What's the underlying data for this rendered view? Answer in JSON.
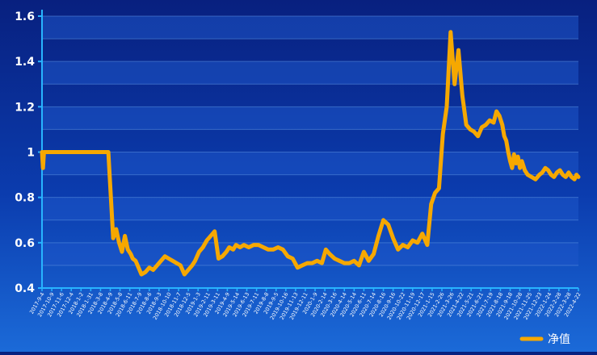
{
  "chart_data": {
    "type": "line",
    "title": "",
    "xlabel": "",
    "ylabel": "",
    "ylim": [
      0.4,
      1.6
    ],
    "yticks": [
      "0.4",
      "0.6",
      "0.8",
      "1",
      "1.2",
      "1.4",
      "1.6"
    ],
    "grid": true,
    "legend_position": "bottom-right",
    "colors": {
      "line": "#f6a800",
      "axis": "#28b4ff",
      "tick_text": "#ffffff",
      "grid": "#5a8fe0",
      "band": "#1d55c8"
    },
    "x_tick_labels": [
      "2017-9-4",
      "2017-10-9",
      "2017-11-6",
      "2017-12-4",
      "2018-1-2",
      "2018-1-31",
      "2018-3-8",
      "2018-4-9",
      "2018-5-8",
      "2018-6-11",
      "2018-7-9",
      "2018-8-6",
      "2018-9-3",
      "2018-10-10",
      "2018-11-7",
      "2018-12-5",
      "2019-1-3",
      "2019-2-11",
      "2019-3-11",
      "2019-4-9",
      "2019-5-14",
      "2019-6-13",
      "2019-7-11",
      "2019-8-8",
      "2019-9-5",
      "2019-10-16",
      "2019-11-13",
      "2019-12-11",
      "2020-1-9",
      "2020-2-14",
      "2020-3-16",
      "2020-4-14",
      "2020-5-14",
      "2020-6-11",
      "2020-7-14",
      "2020-8-16",
      "2020-9-16",
      "2020-10-22",
      "2020-11-19",
      "2020-12-17",
      "2021-1-15",
      "2021-2-26",
      "2021-3-26",
      "2021-4-22",
      "2021-5-21",
      "2021-6-21",
      "2021-7-19",
      "2021-8-18",
      "2021-9-18",
      "2021-10-28",
      "2021-11-25",
      "2021-12-23",
      "2022-1-24",
      "2022-2-28",
      "2022-3-28",
      "2022-4-22"
    ],
    "series": [
      {
        "name": "净值",
        "x": [
          0,
          0.1,
          0.2,
          0.3,
          0.5,
          2,
          3,
          4,
          5,
          6,
          6.8,
          7.3,
          7.6,
          7.9,
          8.2,
          8.5,
          8.8,
          9.1,
          9.3,
          9.6,
          9.9,
          10.2,
          10.6,
          11,
          11.4,
          11.8,
          12.2,
          12.6,
          13,
          13.4,
          13.8,
          14.2,
          14.6,
          15,
          15.4,
          15.7,
          16.1,
          16.5,
          16.9,
          17.3,
          17.7,
          18.1,
          18.5,
          18.9,
          19.2,
          19.6,
          19.9,
          20.3,
          20.7,
          21.2,
          21.7,
          22.2,
          22.7,
          23.2,
          23.7,
          24.2,
          24.7,
          25.2,
          25.7,
          26.2,
          26.7,
          27.2,
          27.7,
          28.2,
          28.7,
          29.1,
          29.5,
          30,
          30.5,
          31,
          31.5,
          32,
          32.5,
          33,
          33.5,
          34,
          34.5,
          35,
          35.5,
          36,
          36.5,
          37,
          37.5,
          38,
          38.5,
          39,
          39.5,
          39.9,
          40.3,
          40.7,
          41.1,
          41.5,
          41.9,
          42.3,
          42.7,
          43.1,
          43.5,
          43.9,
          44.3,
          44.7,
          45.1,
          45.5,
          45.9,
          46.3,
          46.6,
          46.9,
          47.2,
          47.4,
          47.6,
          47.8,
          48,
          48.2,
          48.4,
          48.6,
          48.8,
          49,
          49.2,
          49.5,
          49.8,
          50.2,
          50.6,
          51,
          51.3,
          51.6,
          51.9,
          52.2,
          52.5,
          52.8,
          53.1,
          53.4,
          53.7,
          54,
          54.3,
          54.6,
          54.8,
          55
        ],
        "y": [
          1.0,
          0.93,
          1.0,
          1.0,
          1.0,
          1.0,
          1.0,
          1.0,
          1.0,
          1.0,
          1.0,
          0.62,
          0.66,
          0.6,
          0.56,
          0.63,
          0.57,
          0.55,
          0.53,
          0.52,
          0.49,
          0.46,
          0.47,
          0.49,
          0.48,
          0.5,
          0.52,
          0.54,
          0.53,
          0.52,
          0.51,
          0.5,
          0.46,
          0.48,
          0.5,
          0.52,
          0.56,
          0.58,
          0.61,
          0.63,
          0.65,
          0.53,
          0.54,
          0.56,
          0.58,
          0.57,
          0.59,
          0.58,
          0.59,
          0.58,
          0.59,
          0.59,
          0.58,
          0.57,
          0.57,
          0.58,
          0.57,
          0.54,
          0.53,
          0.49,
          0.5,
          0.51,
          0.51,
          0.52,
          0.51,
          0.57,
          0.55,
          0.53,
          0.52,
          0.51,
          0.51,
          0.52,
          0.5,
          0.56,
          0.52,
          0.55,
          0.63,
          0.7,
          0.68,
          0.62,
          0.57,
          0.59,
          0.58,
          0.61,
          0.6,
          0.64,
          0.59,
          0.77,
          0.82,
          0.84,
          1.08,
          1.2,
          1.53,
          1.3,
          1.45,
          1.25,
          1.12,
          1.1,
          1.09,
          1.07,
          1.11,
          1.12,
          1.14,
          1.13,
          1.18,
          1.16,
          1.12,
          1.07,
          1.05,
          1.0,
          0.96,
          0.93,
          0.99,
          0.95,
          0.98,
          0.93,
          0.96,
          0.92,
          0.9,
          0.89,
          0.88,
          0.9,
          0.91,
          0.93,
          0.92,
          0.9,
          0.89,
          0.91,
          0.92,
          0.9,
          0.89,
          0.91,
          0.89,
          0.88,
          0.9,
          0.89
        ]
      }
    ]
  }
}
